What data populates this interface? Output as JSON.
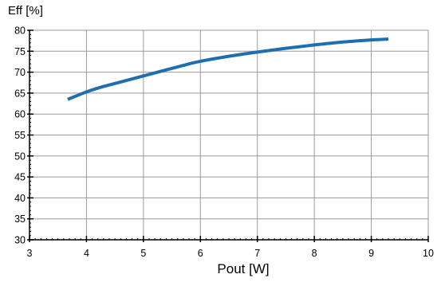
{
  "chart_data": {
    "type": "line",
    "xlabel": "Pout [W]",
    "ylabel": "Eff [%]",
    "xlim": [
      3,
      10
    ],
    "ylim": [
      30,
      80
    ],
    "xticks": [
      3,
      4,
      5,
      6,
      7,
      8,
      9,
      10
    ],
    "yticks": [
      30,
      35,
      40,
      45,
      50,
      55,
      60,
      65,
      70,
      75,
      80
    ],
    "grid": true,
    "line_color": "#1f6fb0",
    "series": [
      {
        "x": [
          3.67,
          4.0,
          4.25,
          4.5,
          4.75,
          5.0,
          5.25,
          5.5,
          5.75,
          6.0,
          6.5,
          7.0,
          7.5,
          8.0,
          8.5,
          9.0,
          9.3
        ],
        "y": [
          63.5,
          65.3,
          66.4,
          67.3,
          68.2,
          69.1,
          70.0,
          70.9,
          71.8,
          72.6,
          73.8,
          74.8,
          75.7,
          76.5,
          77.2,
          77.7,
          77.9
        ]
      }
    ]
  }
}
